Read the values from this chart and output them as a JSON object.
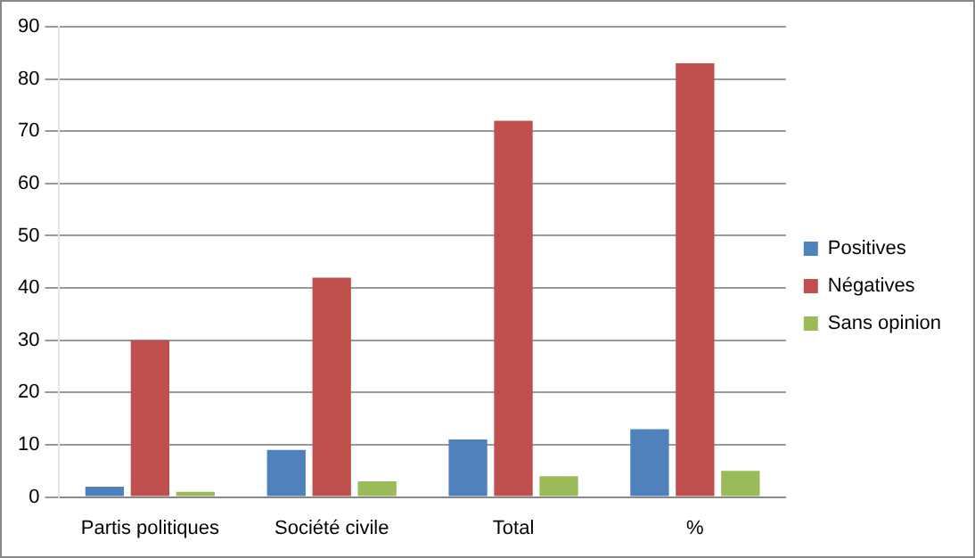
{
  "chart_data": {
    "type": "bar",
    "categories": [
      "Partis politiques",
      "Société civile",
      "Total",
      "%"
    ],
    "series": [
      {
        "name": "Positives",
        "color": "#4f81bd",
        "values": [
          2,
          9,
          11,
          13
        ]
      },
      {
        "name": "Négatives",
        "color": "#c0504d",
        "values": [
          30,
          42,
          72,
          83
        ]
      },
      {
        "name": "Sans opinion",
        "color": "#9bbb59",
        "values": [
          1,
          3,
          4,
          5
        ]
      }
    ],
    "ylim": [
      0,
      90
    ],
    "yticks": [
      0,
      10,
      20,
      30,
      40,
      50,
      60,
      70,
      80,
      90
    ],
    "grid": "y",
    "legend": "right"
  }
}
